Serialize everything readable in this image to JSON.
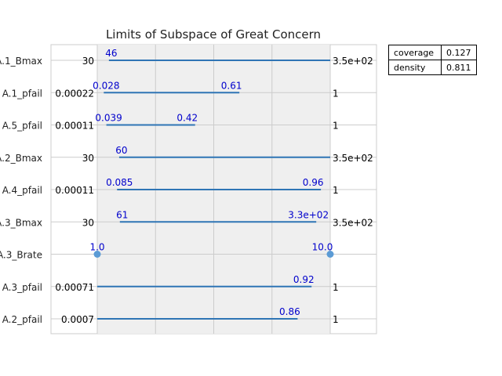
{
  "chart_data": {
    "type": "box-limits",
    "title": "Limits of Subspace of Great Concern",
    "stats": [
      {
        "name": "coverage",
        "value": "0.127"
      },
      {
        "name": "density",
        "value": "0.811"
      }
    ],
    "rows": [
      {
        "label": "A.1_Bmax",
        "min_label": "30",
        "max_label": "3.5e+02",
        "kind": "range",
        "lo": 0.05,
        "hi": 1.0,
        "lo_label": "46",
        "hi_label": ""
      },
      {
        "label": "A.1_pfail",
        "min_label": "0.00022",
        "max_label": "1",
        "kind": "range",
        "lo": 0.028,
        "hi": 0.61,
        "lo_label": "0.028",
        "hi_label": "0.61"
      },
      {
        "label": "A.5_pfail",
        "min_label": "0.00011",
        "max_label": "1",
        "kind": "range",
        "lo": 0.039,
        "hi": 0.42,
        "lo_label": "0.039",
        "hi_label": "0.42"
      },
      {
        "label": "A.2_Bmax",
        "min_label": "30",
        "max_label": "3.5e+02",
        "kind": "range",
        "lo": 0.094,
        "hi": 1.0,
        "lo_label": "60",
        "hi_label": ""
      },
      {
        "label": "A.4_pfail",
        "min_label": "0.00011",
        "max_label": "1",
        "kind": "range",
        "lo": 0.085,
        "hi": 0.96,
        "lo_label": "0.085",
        "hi_label": "0.96"
      },
      {
        "label": "A.3_Bmax",
        "min_label": "30",
        "max_label": "3.5e+02",
        "kind": "range",
        "lo": 0.097,
        "hi": 0.94,
        "lo_label": "61",
        "hi_label": "3.3e+02"
      },
      {
        "label": "A.3_Brate",
        "min_label": "",
        "max_label": "",
        "kind": "points",
        "lo": 0.0,
        "hi": 1.0,
        "lo_label": "1.0",
        "hi_label": "10.0"
      },
      {
        "label": "A.3_pfail",
        "min_label": "0.00071",
        "max_label": "1",
        "kind": "range",
        "lo": 0.0,
        "hi": 0.92,
        "lo_label": "",
        "hi_label": "0.92"
      },
      {
        "label": "A.2_pfail",
        "min_label": "0.0007",
        "max_label": "1",
        "kind": "range",
        "lo": 0.0,
        "hi": 0.86,
        "lo_label": "",
        "hi_label": "0.86"
      }
    ],
    "grid": true
  }
}
